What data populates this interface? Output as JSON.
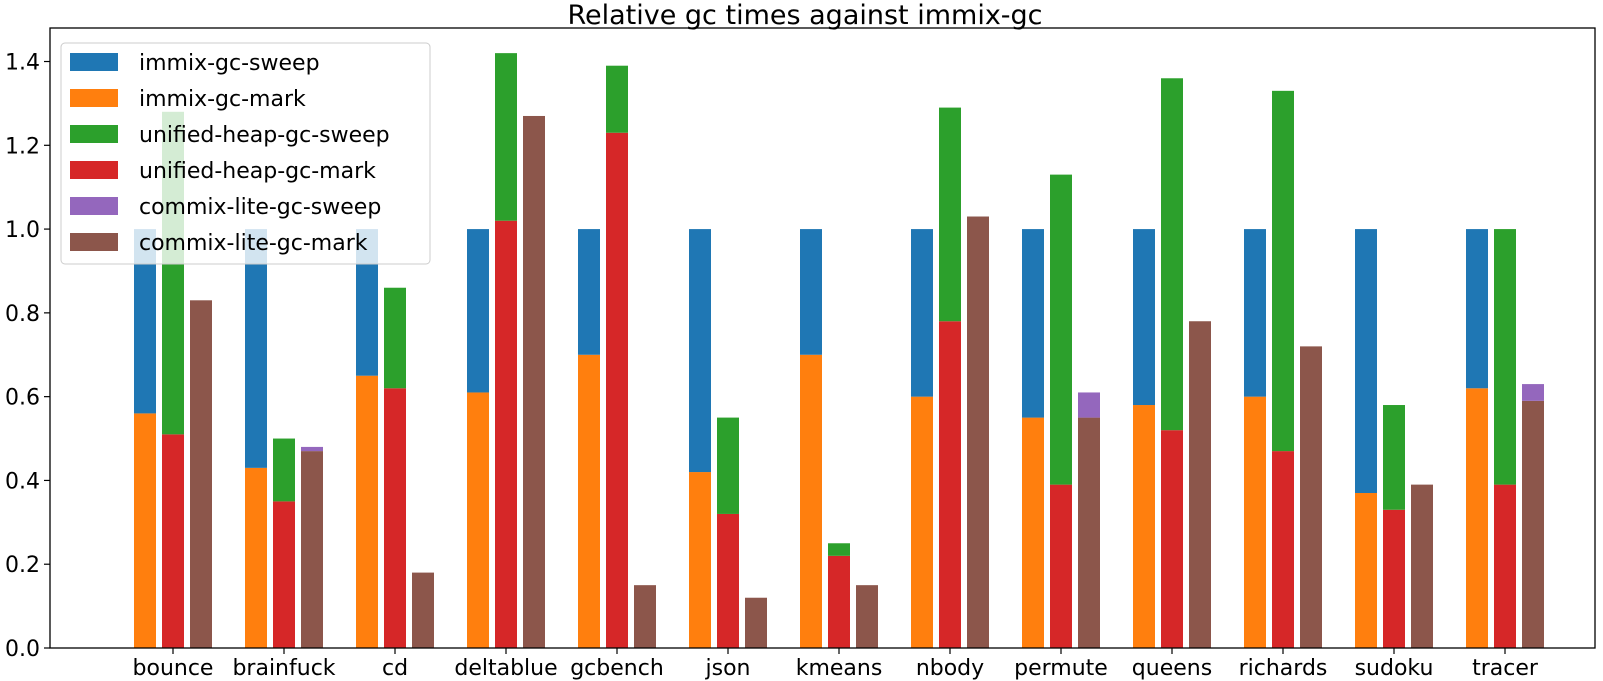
{
  "chart_data": {
    "type": "bar",
    "title": "Relative gc times against immix-gc",
    "xlabel": "",
    "ylabel": "",
    "ylim": [
      0,
      1.48
    ],
    "yticks": [
      0.0,
      0.2,
      0.4,
      0.6,
      0.8,
      1.0,
      1.2,
      1.4
    ],
    "ytick_labels": [
      "0.0",
      "0.2",
      "0.4",
      "0.6",
      "0.8",
      "1.0",
      "1.2",
      "1.4"
    ],
    "grid": false,
    "legend_position": "top-left",
    "categories": [
      "bounce",
      "brainfuck",
      "cd",
      "deltablue",
      "gcbench",
      "json",
      "kmeans",
      "nbody",
      "permute",
      "queens",
      "richards",
      "sudoku",
      "tracer"
    ],
    "groups": [
      {
        "name": "immix-gc",
        "sweep_series": 0,
        "mark_series": 1
      },
      {
        "name": "unified-heap-gc",
        "sweep_series": 2,
        "mark_series": 3
      },
      {
        "name": "commix-lite-gc",
        "sweep_series": 4,
        "mark_series": 5
      }
    ],
    "series": [
      {
        "name": "immix-gc-sweep",
        "color": "#1f77b4",
        "values": [
          0.44,
          0.57,
          0.35,
          0.39,
          0.3,
          0.58,
          0.3,
          0.4,
          0.45,
          0.42,
          0.4,
          0.63,
          0.38
        ]
      },
      {
        "name": "immix-gc-mark",
        "color": "#ff7f0e",
        "values": [
          0.56,
          0.43,
          0.65,
          0.61,
          0.7,
          0.42,
          0.7,
          0.6,
          0.55,
          0.58,
          0.6,
          0.37,
          0.62
        ]
      },
      {
        "name": "unified-heap-gc-sweep",
        "color": "#2ca02c",
        "values": [
          0.77,
          0.15,
          0.24,
          0.4,
          0.16,
          0.23,
          0.03,
          0.51,
          0.74,
          0.84,
          0.86,
          0.25,
          0.61
        ]
      },
      {
        "name": "unified-heap-gc-mark",
        "color": "#d62728",
        "values": [
          0.51,
          0.35,
          0.62,
          1.02,
          1.23,
          0.32,
          0.22,
          0.78,
          0.39,
          0.52,
          0.47,
          0.33,
          0.39
        ]
      },
      {
        "name": "commix-lite-gc-sweep",
        "color": "#9467bd",
        "values": [
          0.0,
          0.01,
          0.0,
          0.0,
          0.0,
          0.0,
          0.0,
          0.0,
          0.06,
          0.0,
          0.0,
          0.0,
          0.04
        ]
      },
      {
        "name": "commix-lite-gc-mark",
        "color": "#8c564b",
        "values": [
          0.83,
          0.47,
          0.18,
          1.27,
          0.15,
          0.12,
          0.15,
          1.03,
          0.55,
          0.78,
          0.72,
          0.39,
          0.59
        ]
      }
    ]
  }
}
